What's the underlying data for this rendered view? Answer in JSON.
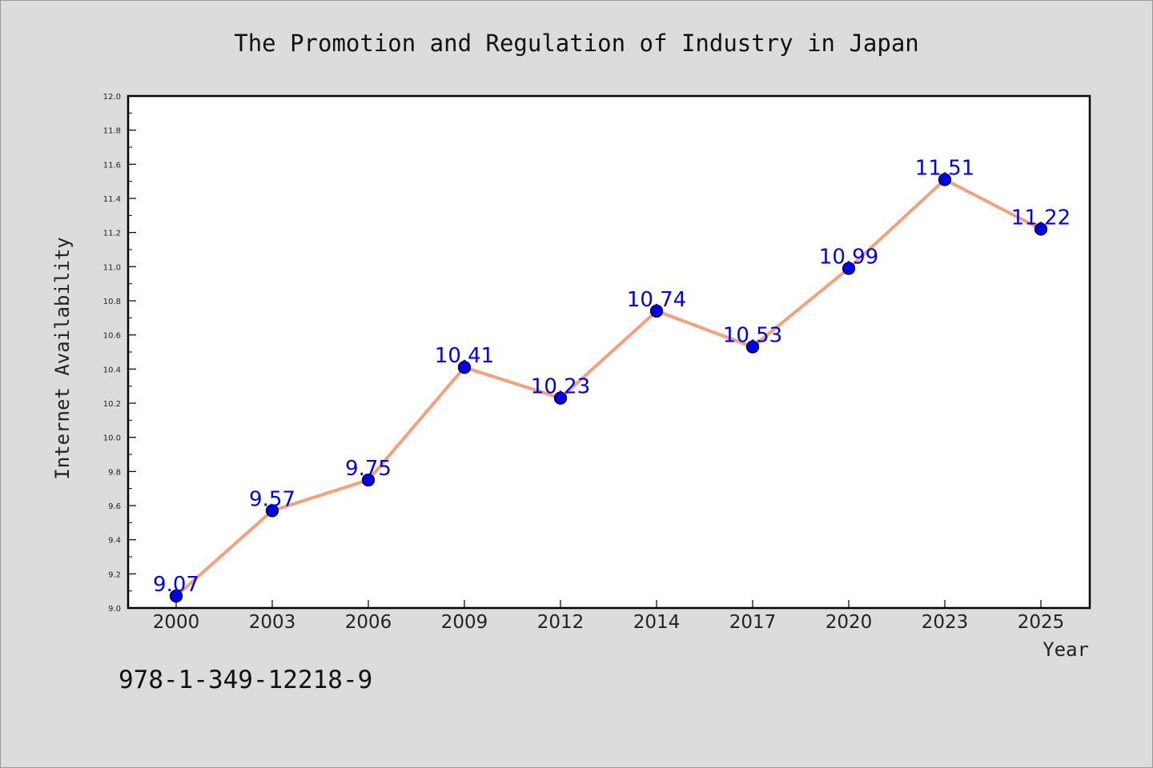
{
  "chart_data": {
    "type": "line",
    "title": "The Promotion and Regulation of Industry in Japan",
    "xlabel": "Year",
    "ylabel": "Internet Availability",
    "categories": [
      "2000",
      "2003",
      "2006",
      "2009",
      "2012",
      "2014",
      "2017",
      "2020",
      "2023",
      "2025"
    ],
    "series": [
      {
        "values": [
          9.07,
          9.57,
          9.75,
          10.41,
          10.23,
          10.74,
          10.53,
          10.99,
          11.51,
          11.22
        ],
        "labels": [
          "9.07",
          "9.57",
          "9.75",
          "10.41",
          "10.23",
          "10.74",
          "10.53",
          "10.99",
          "11.51",
          "11.22"
        ]
      }
    ],
    "ylim": [
      9.0,
      12.0
    ],
    "yticks": [
      "9.0",
      "9.2",
      "9.4",
      "9.6",
      "9.8",
      "10.0",
      "10.2",
      "10.4",
      "10.6",
      "10.8",
      "11.0",
      "11.2",
      "11.4",
      "11.6",
      "11.8",
      "12.0"
    ],
    "grid": false,
    "colors": {
      "line": "#f4a07c",
      "marker": "#0000ee",
      "label": "#0000ee",
      "plot_bg": "#ffffff",
      "page_bg": "#dcdcdc"
    }
  },
  "footer": {
    "isbn": "978-1-349-12218-9"
  }
}
